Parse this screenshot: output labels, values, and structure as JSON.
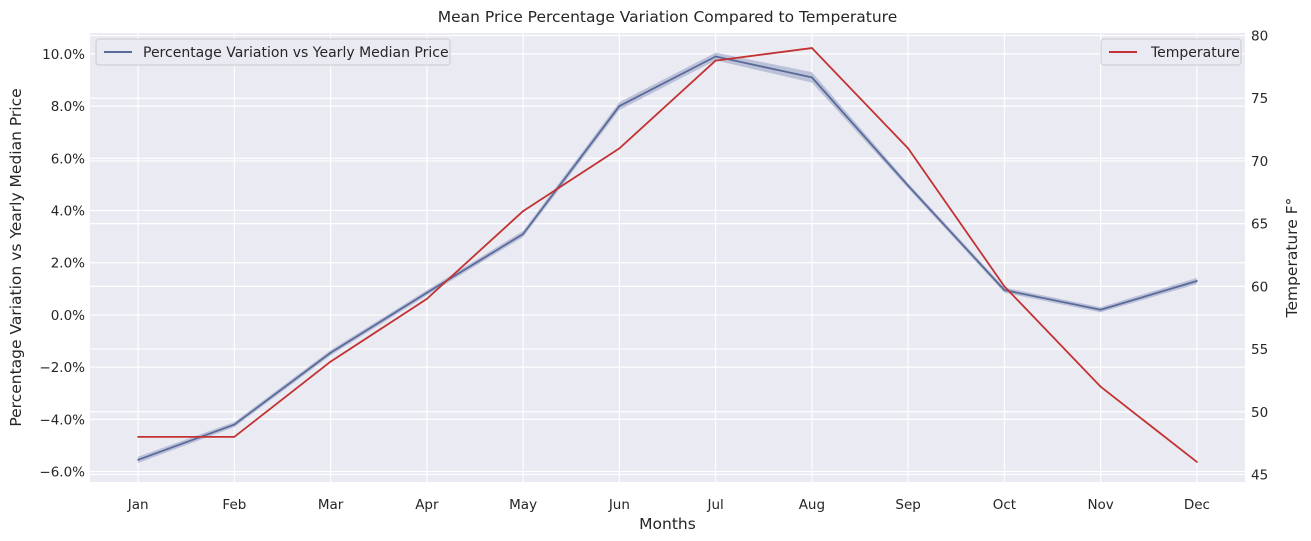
{
  "chart_data": {
    "type": "line",
    "title": "Mean Price Percentage Variation Compared to Temperature",
    "xlabel": "Months",
    "ylabel_left": "Percentage Variation vs Yearly Median Price",
    "ylabel_right": "Temperature F°",
    "categories": [
      "Jan",
      "Feb",
      "Mar",
      "Apr",
      "May",
      "Jun",
      "Jul",
      "Aug",
      "Sep",
      "Oct",
      "Nov",
      "Dec"
    ],
    "ylim_left": [
      -6.4,
      10.8
    ],
    "yticks_left": [
      -6.0,
      -4.0,
      -2.0,
      0.0,
      2.0,
      4.0,
      6.0,
      8.0,
      10.0
    ],
    "ytick_labels_left": [
      "−6.0%",
      "−4.0%",
      "−2.0%",
      "0.0%",
      "2.0%",
      "4.0%",
      "6.0%",
      "8.0%",
      "10.0%"
    ],
    "ylim_right": [
      44.4,
      80.2
    ],
    "yticks_right": [
      45,
      50,
      55,
      60,
      65,
      70,
      75,
      80
    ],
    "grid": true,
    "series": [
      {
        "name": "Percentage Variation vs Yearly Median Price",
        "axis": "left",
        "color": "#5a6a99",
        "band_color": "#b3bad3",
        "values": [
          -5.55,
          -4.2,
          -1.45,
          0.85,
          3.1,
          8.0,
          9.9,
          9.1,
          4.95,
          0.95,
          0.2,
          1.3
        ],
        "ci_halfwidth": [
          0.12,
          0.1,
          0.1,
          0.1,
          0.12,
          0.15,
          0.15,
          0.2,
          0.1,
          0.1,
          0.1,
          0.12
        ],
        "legend_placement": "top-left"
      },
      {
        "name": "Temperature",
        "axis": "right",
        "color": "#c33232",
        "values": [
          48,
          48,
          54,
          59,
          66,
          71,
          78,
          79,
          71,
          60,
          52,
          46
        ],
        "legend_placement": "top-right"
      }
    ]
  }
}
